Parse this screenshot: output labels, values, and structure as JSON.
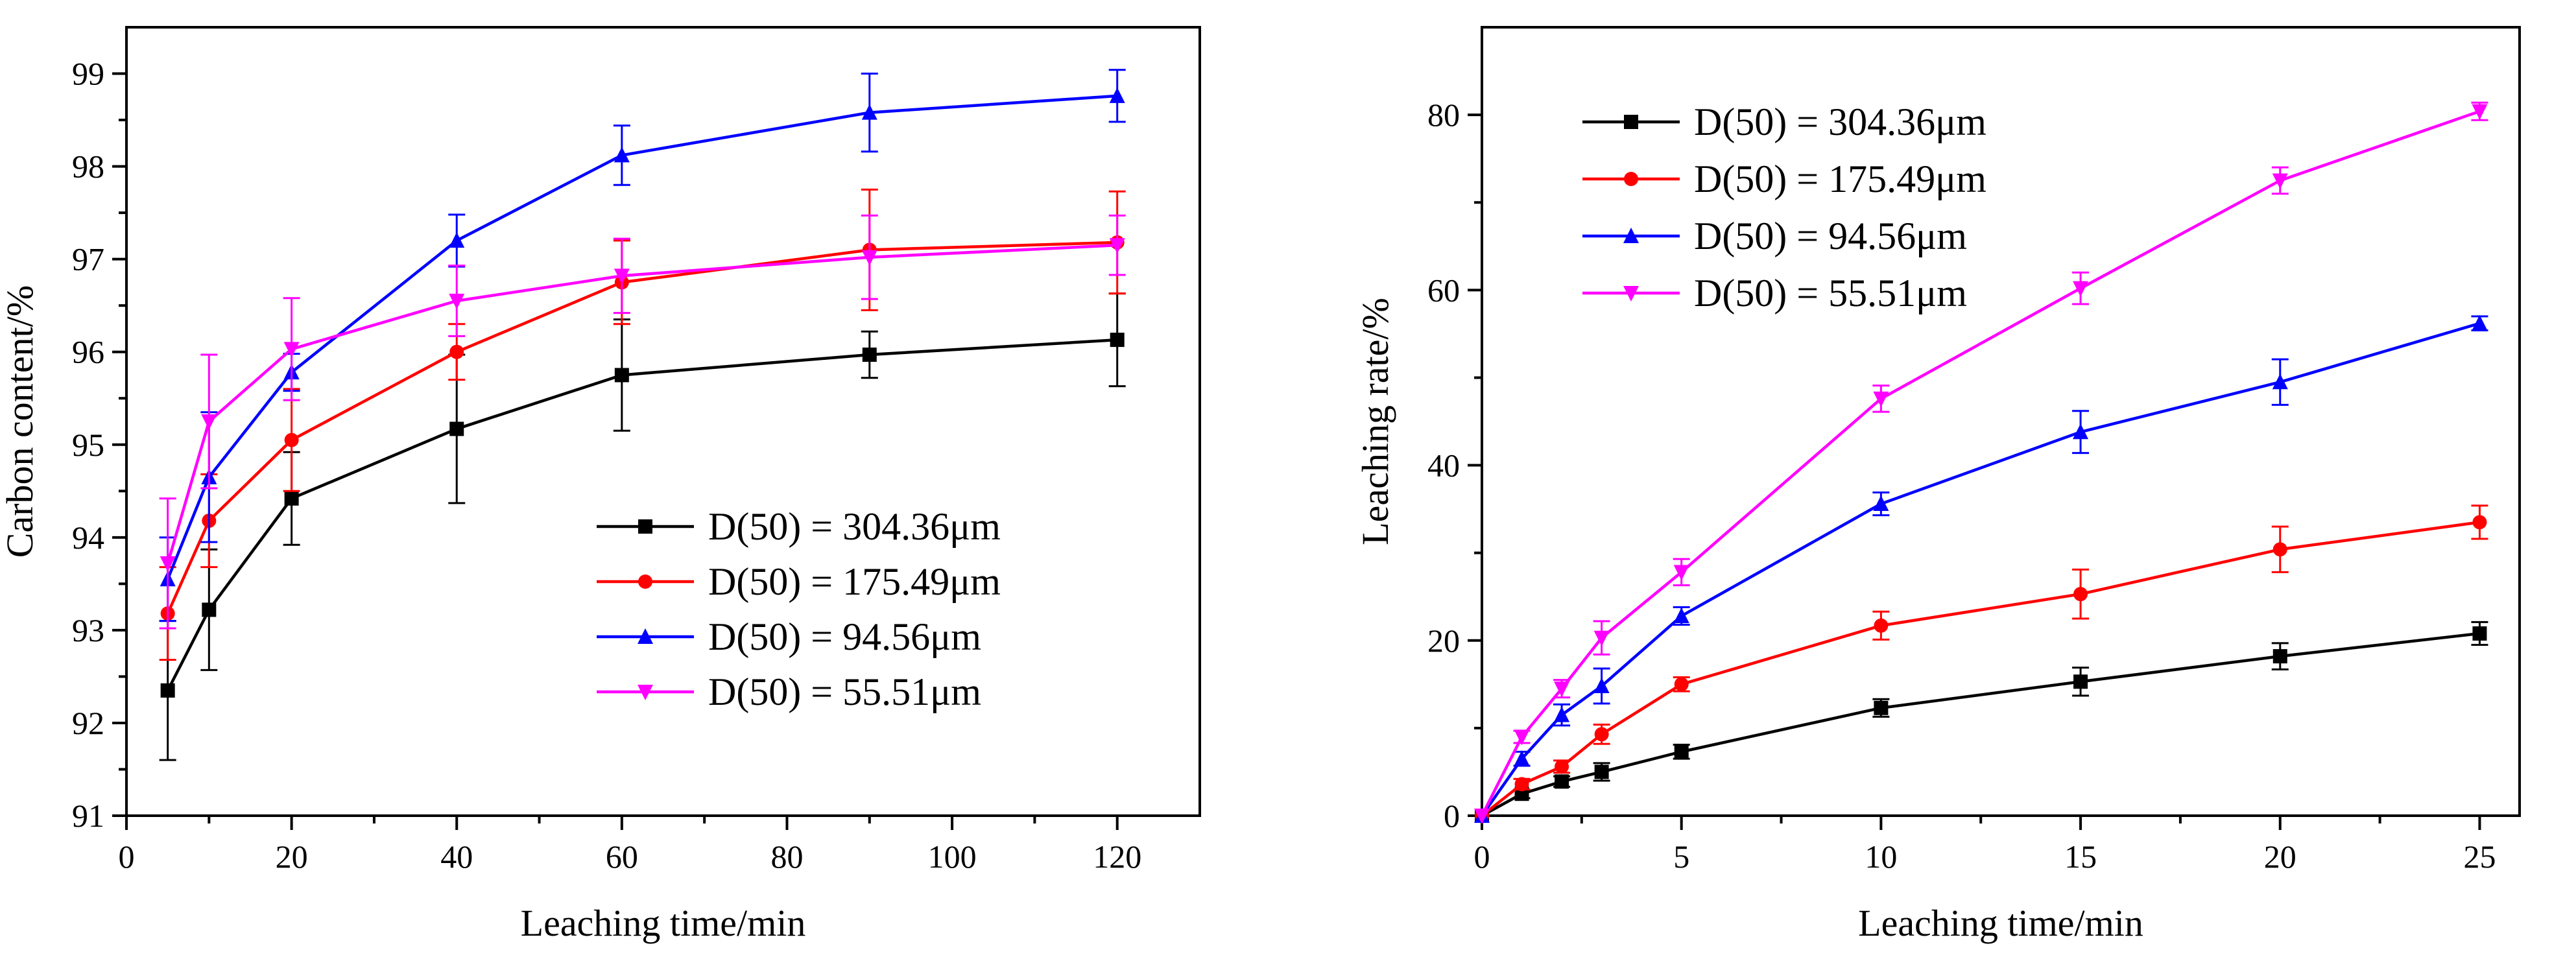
{
  "chart_data": [
    {
      "type": "line",
      "title": "",
      "xlabel": "Leaching time/min",
      "ylabel": "Carbon content/%",
      "xlim": [
        0,
        130
      ],
      "ylim": [
        91,
        99.5
      ],
      "xticks": [
        0,
        20,
        40,
        60,
        80,
        100,
        120
      ],
      "yticks": [
        91,
        92,
        93,
        94,
        95,
        96,
        97,
        98,
        99
      ],
      "x": [
        5,
        10,
        20,
        40,
        60,
        90,
        120
      ],
      "legend_position": "lower-right",
      "series": [
        {
          "name": "D(50) = 304.36μm",
          "color": "#000000",
          "marker": "square",
          "values": [
            92.35,
            93.22,
            94.42,
            95.17,
            95.75,
            95.97,
            96.13
          ],
          "errors": [
            0.75,
            0.65,
            0.5,
            0.8,
            0.6,
            0.25,
            0.5
          ]
        },
        {
          "name": "D(50) = 175.49μm",
          "color": "#ff0000",
          "marker": "circle",
          "values": [
            93.18,
            94.18,
            95.05,
            96.0,
            96.75,
            97.1,
            97.18
          ],
          "errors": [
            0.5,
            0.5,
            0.55,
            0.3,
            0.45,
            0.65,
            0.55
          ]
        },
        {
          "name": "D(50) = 94.56μm",
          "color": "#0000ff",
          "marker": "triangle-up",
          "values": [
            93.55,
            94.65,
            95.78,
            97.2,
            98.12,
            98.58,
            98.76
          ],
          "errors": [
            0.45,
            0.7,
            0.2,
            0.28,
            0.32,
            0.42,
            0.28
          ]
        },
        {
          "name": "D(50) = 55.51μm",
          "color": "#ff00ff",
          "marker": "triangle-down",
          "values": [
            93.72,
            95.25,
            96.03,
            96.55,
            96.82,
            97.02,
            97.15
          ],
          "errors": [
            0.7,
            0.72,
            0.55,
            0.38,
            0.4,
            0.45,
            0.32
          ]
        }
      ]
    },
    {
      "type": "line",
      "title": "",
      "xlabel": "Leaching time/min",
      "ylabel": "Leaching rate/%",
      "xlim": [
        0,
        26
      ],
      "ylim": [
        0,
        90
      ],
      "xticks": [
        0,
        5,
        10,
        15,
        20,
        25
      ],
      "yticks": [
        0,
        20,
        40,
        60,
        80
      ],
      "x": [
        0,
        1,
        2,
        3,
        5,
        10,
        15,
        20,
        25
      ],
      "legend_position": "top-left",
      "series": [
        {
          "name": "D(50) = 304.36μm",
          "color": "#000000",
          "marker": "square",
          "values": [
            0,
            2.5,
            3.9,
            5.0,
            7.3,
            12.3,
            15.3,
            18.2,
            20.8
          ],
          "errors": [
            0,
            0.5,
            0.6,
            1.0,
            0.8,
            1.0,
            1.6,
            1.5,
            1.3
          ]
        },
        {
          "name": "D(50) = 175.49μm",
          "color": "#ff0000",
          "marker": "circle",
          "values": [
            0,
            3.6,
            5.6,
            9.3,
            15.0,
            21.7,
            25.3,
            30.4,
            33.5
          ],
          "errors": [
            0,
            0.6,
            0.7,
            1.1,
            0.8,
            1.6,
            2.8,
            2.6,
            1.9
          ]
        },
        {
          "name": "D(50) = 94.56μm",
          "color": "#0000ff",
          "marker": "triangle-up",
          "values": [
            0,
            6.5,
            11.5,
            14.8,
            22.8,
            35.6,
            43.8,
            49.5,
            56.2
          ],
          "errors": [
            0,
            0.8,
            1.2,
            2.0,
            1.0,
            1.3,
            2.4,
            2.6,
            0.8
          ]
        },
        {
          "name": "D(50) = 55.51μm",
          "color": "#ff00ff",
          "marker": "triangle-down",
          "values": [
            0,
            9.0,
            14.5,
            20.3,
            27.8,
            47.6,
            60.2,
            72.5,
            80.4
          ],
          "errors": [
            0,
            0.7,
            1.0,
            1.9,
            1.5,
            1.5,
            1.8,
            1.5,
            1.0
          ]
        }
      ]
    }
  ]
}
